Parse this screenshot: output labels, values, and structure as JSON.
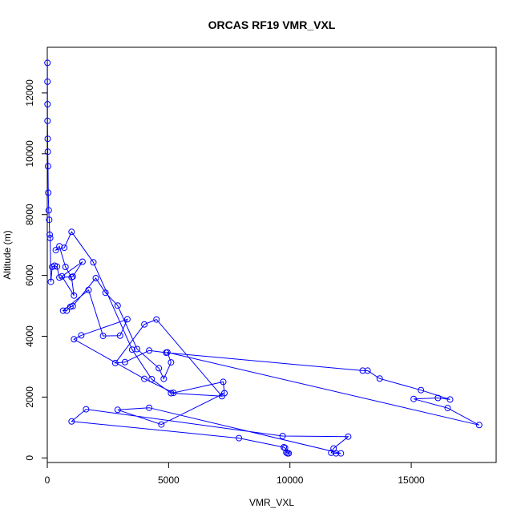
{
  "chart_data": {
    "type": "line",
    "title": "ORCAS RF19 VMR_VXL",
    "xlabel": "VMR_VXL",
    "ylabel": "Altitude (m)",
    "xlim": [
      0,
      18500
    ],
    "ylim": [
      -150,
      13500
    ],
    "xticks": [
      0,
      5000,
      10000,
      15000
    ],
    "yticks": [
      0,
      2000,
      4000,
      6000,
      8000,
      10000,
      12000
    ],
    "grid": false,
    "legend": "none",
    "color": "#0000ff",
    "marker": "open-circle",
    "series": [
      {
        "x": [
          9900,
          9850,
          9950,
          9800,
          9750,
          7900,
          1000,
          1600,
          9700,
          12400,
          11800,
          11700,
          11900,
          12100,
          4200,
          2900,
          4700,
          7300,
          7250,
          5200,
          4000,
          1100,
          1400,
          3300,
          3000,
          2300,
          1700,
          650,
          800,
          950,
          1050,
          2000,
          2400,
          2900,
          3700,
          4600,
          4800,
          5100,
          4950,
          17800,
          16500,
          15100,
          16100,
          16600,
          15400,
          13700,
          13200,
          13000,
          4900,
          4200,
          3200,
          2800,
          4000,
          4500,
          7200,
          5100,
          4300,
          3500,
          1900,
          1000,
          700,
          350,
          500,
          750,
          1000,
          1100,
          600,
          1450,
          1050,
          500,
          400,
          300,
          200,
          150,
          120,
          100,
          80,
          60,
          40,
          30,
          20,
          15,
          10,
          10,
          8,
          6
        ],
        "y": [
          150,
          180,
          150,
          330,
          350,
          650,
          1200,
          1600,
          720,
          700,
          310,
          170,
          150,
          150,
          1650,
          1580,
          1100,
          2130,
          2500,
          2140,
          2600,
          3900,
          4030,
          4560,
          4020,
          4010,
          5520,
          4840,
          4840,
          4970,
          4990,
          5910,
          5430,
          5010,
          3580,
          2950,
          2600,
          3140,
          3470,
          1080,
          1640,
          1940,
          1970,
          1920,
          2230,
          2610,
          2870,
          2870,
          3460,
          3530,
          3150,
          3120,
          4390,
          4550,
          2030,
          2130,
          2590,
          3560,
          6430,
          7430,
          6910,
          6830,
          6960,
          6280,
          5940,
          5340,
          5970,
          6450,
          5960,
          5930,
          6290,
          6320,
          6280,
          5790,
          7230,
          7340,
          7830,
          8140,
          8720,
          9590,
          10070,
          10490,
          11080,
          11630,
          12370,
          12990
        ]
      }
    ]
  }
}
